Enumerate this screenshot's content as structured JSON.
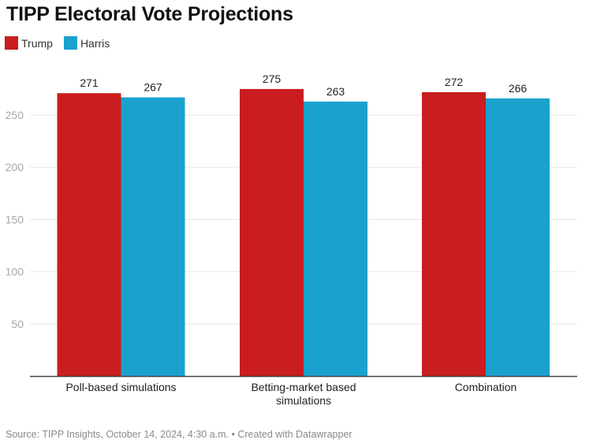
{
  "title": "TIPP Electoral Vote Projections",
  "legend": [
    {
      "name": "Trump",
      "color": "#c91d1f"
    },
    {
      "name": "Harris",
      "color": "#1aa1ce"
    }
  ],
  "footer": "Source: TIPP Insights, October 14, 2024, 4:30 a.m. • Created with Datawrapper",
  "chart_data": {
    "type": "bar",
    "title": "TIPP Electoral Vote Projections",
    "xlabel": "",
    "ylabel": "",
    "categories": [
      [
        "Poll-based simulations"
      ],
      [
        "Betting-market based",
        "simulations"
      ],
      [
        "Combination"
      ]
    ],
    "series": [
      {
        "name": "Trump",
        "color": "#c91d1f",
        "values": [
          271,
          275,
          272
        ]
      },
      {
        "name": "Harris",
        "color": "#1aa1ce",
        "values": [
          267,
          263,
          266
        ]
      }
    ],
    "yticks": [
      50,
      100,
      150,
      200,
      250
    ],
    "ylim": [
      0,
      250
    ],
    "grid": true,
    "legend_position": "top-left",
    "data_labels": true
  }
}
